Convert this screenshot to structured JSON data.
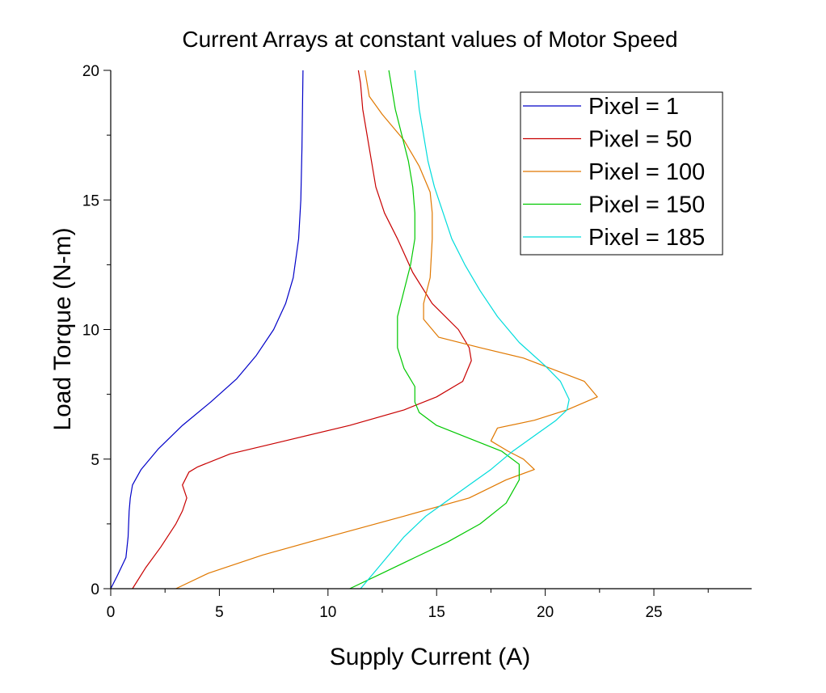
{
  "chart_data": {
    "type": "line",
    "title": "Current Arrays at constant values of Motor Speed",
    "xlabel": "Supply Current (A)",
    "ylabel": "Load Torque (N-m)",
    "xlim": [
      0,
      29.5
    ],
    "ylim": [
      0,
      20
    ],
    "xticks": [
      0,
      5,
      10,
      15,
      20,
      25
    ],
    "yticks": [
      0,
      5,
      10,
      15,
      20
    ],
    "grid": false,
    "legend_position": "top-right",
    "series": [
      {
        "name": "Pixel = 1",
        "color": "#0000c8",
        "points": [
          [
            0.0,
            0.0
          ],
          [
            0.3,
            0.5
          ],
          [
            0.7,
            1.2
          ],
          [
            0.8,
            2.0
          ],
          [
            0.85,
            3.0
          ],
          [
            0.9,
            3.5
          ],
          [
            1.0,
            4.0
          ],
          [
            1.4,
            4.6
          ],
          [
            2.2,
            5.4
          ],
          [
            3.3,
            6.3
          ],
          [
            4.6,
            7.2
          ],
          [
            5.8,
            8.1
          ],
          [
            6.7,
            9.0
          ],
          [
            7.5,
            10.0
          ],
          [
            8.05,
            11.0
          ],
          [
            8.4,
            12.0
          ],
          [
            8.65,
            13.5
          ],
          [
            8.75,
            15.0
          ],
          [
            8.8,
            17.0
          ],
          [
            8.85,
            20.0
          ]
        ]
      },
      {
        "name": "Pixel = 50",
        "color": "#c80000",
        "points": [
          [
            1.0,
            0.0
          ],
          [
            1.6,
            0.8
          ],
          [
            2.3,
            1.6
          ],
          [
            3.0,
            2.5
          ],
          [
            3.3,
            3.0
          ],
          [
            3.5,
            3.5
          ],
          [
            3.3,
            4.0
          ],
          [
            3.6,
            4.5
          ],
          [
            4.0,
            4.7
          ],
          [
            5.5,
            5.2
          ],
          [
            8.0,
            5.7
          ],
          [
            11.0,
            6.3
          ],
          [
            13.5,
            6.9
          ],
          [
            15.0,
            7.4
          ],
          [
            16.2,
            8.0
          ],
          [
            16.6,
            8.8
          ],
          [
            16.5,
            9.3
          ],
          [
            16.0,
            10.0
          ],
          [
            14.8,
            11.0
          ],
          [
            13.9,
            12.2
          ],
          [
            13.2,
            13.5
          ],
          [
            12.6,
            14.5
          ],
          [
            12.2,
            15.5
          ],
          [
            12.0,
            16.5
          ],
          [
            11.8,
            17.5
          ],
          [
            11.6,
            18.5
          ],
          [
            11.5,
            19.5
          ],
          [
            11.4,
            20.0
          ]
        ]
      },
      {
        "name": "Pixel = 100",
        "color": "#e07800",
        "points": [
          [
            3.0,
            0.0
          ],
          [
            4.5,
            0.6
          ],
          [
            7.0,
            1.3
          ],
          [
            10.0,
            2.0
          ],
          [
            13.5,
            2.8
          ],
          [
            16.5,
            3.5
          ],
          [
            18.2,
            4.2
          ],
          [
            19.5,
            4.6
          ],
          [
            19.0,
            5.0
          ],
          [
            18.3,
            5.3
          ],
          [
            17.5,
            5.7
          ],
          [
            17.8,
            6.2
          ],
          [
            19.5,
            6.5
          ],
          [
            21.0,
            6.9
          ],
          [
            22.4,
            7.4
          ],
          [
            21.8,
            8.0
          ],
          [
            19.0,
            8.9
          ],
          [
            17.0,
            9.3
          ],
          [
            15.1,
            9.7
          ],
          [
            14.4,
            10.4
          ],
          [
            14.4,
            11.0
          ],
          [
            14.7,
            12.0
          ],
          [
            14.8,
            13.5
          ],
          [
            14.8,
            14.5
          ],
          [
            14.7,
            15.3
          ],
          [
            14.2,
            16.3
          ],
          [
            13.5,
            17.3
          ],
          [
            12.5,
            18.3
          ],
          [
            11.9,
            19.0
          ],
          [
            11.8,
            19.5
          ],
          [
            11.7,
            20.0
          ]
        ]
      },
      {
        "name": "Pixel = 150",
        "color": "#00c800",
        "points": [
          [
            11.0,
            0.0
          ],
          [
            12.5,
            0.6
          ],
          [
            14.0,
            1.2
          ],
          [
            15.5,
            1.8
          ],
          [
            17.0,
            2.5
          ],
          [
            18.2,
            3.3
          ],
          [
            18.8,
            4.2
          ],
          [
            18.8,
            4.8
          ],
          [
            18.0,
            5.3
          ],
          [
            16.5,
            5.8
          ],
          [
            15.0,
            6.3
          ],
          [
            14.2,
            6.8
          ],
          [
            14.0,
            7.2
          ],
          [
            14.0,
            7.8
          ],
          [
            13.5,
            8.5
          ],
          [
            13.2,
            9.3
          ],
          [
            13.2,
            10.5
          ],
          [
            13.5,
            11.5
          ],
          [
            13.8,
            12.5
          ],
          [
            14.0,
            13.5
          ],
          [
            14.0,
            14.5
          ],
          [
            13.9,
            15.5
          ],
          [
            13.7,
            16.5
          ],
          [
            13.4,
            17.5
          ],
          [
            13.1,
            18.5
          ],
          [
            12.9,
            19.5
          ],
          [
            12.8,
            20.0
          ]
        ]
      },
      {
        "name": "Pixel = 185",
        "color": "#00dcdc",
        "points": [
          [
            11.5,
            0.0
          ],
          [
            12.5,
            1.0
          ],
          [
            13.5,
            2.0
          ],
          [
            14.5,
            2.8
          ],
          [
            15.5,
            3.4
          ],
          [
            16.5,
            4.0
          ],
          [
            17.5,
            4.6
          ],
          [
            18.5,
            5.3
          ],
          [
            19.5,
            5.9
          ],
          [
            20.5,
            6.5
          ],
          [
            21.0,
            6.9
          ],
          [
            21.1,
            7.3
          ],
          [
            20.7,
            8.0
          ],
          [
            20.0,
            8.6
          ],
          [
            18.8,
            9.5
          ],
          [
            17.8,
            10.5
          ],
          [
            17.0,
            11.5
          ],
          [
            16.3,
            12.5
          ],
          [
            15.7,
            13.5
          ],
          [
            15.3,
            14.5
          ],
          [
            14.9,
            15.5
          ],
          [
            14.6,
            16.5
          ],
          [
            14.4,
            17.5
          ],
          [
            14.2,
            18.5
          ],
          [
            14.1,
            19.3
          ],
          [
            14.0,
            20.0
          ]
        ]
      }
    ]
  }
}
